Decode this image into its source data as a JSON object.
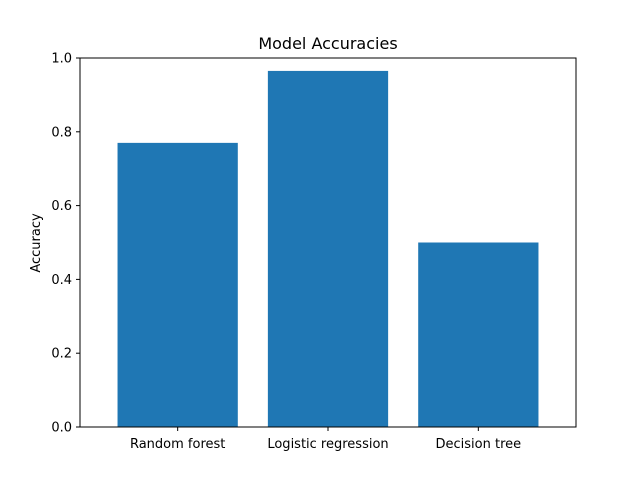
{
  "chart_data": {
    "type": "bar",
    "title": "Model Accuracies",
    "xlabel": "",
    "ylabel": "Accuracy",
    "categories": [
      "Random forest",
      "Logistic regression",
      "Decision tree"
    ],
    "values": [
      0.77,
      0.965,
      0.5
    ],
    "ylim": [
      0,
      1.0
    ],
    "yticks": [
      "0.0",
      "0.2",
      "0.4",
      "0.6",
      "0.8",
      "1.0"
    ],
    "bar_color": "#1f77b4",
    "grid": false,
    "legend": false
  }
}
